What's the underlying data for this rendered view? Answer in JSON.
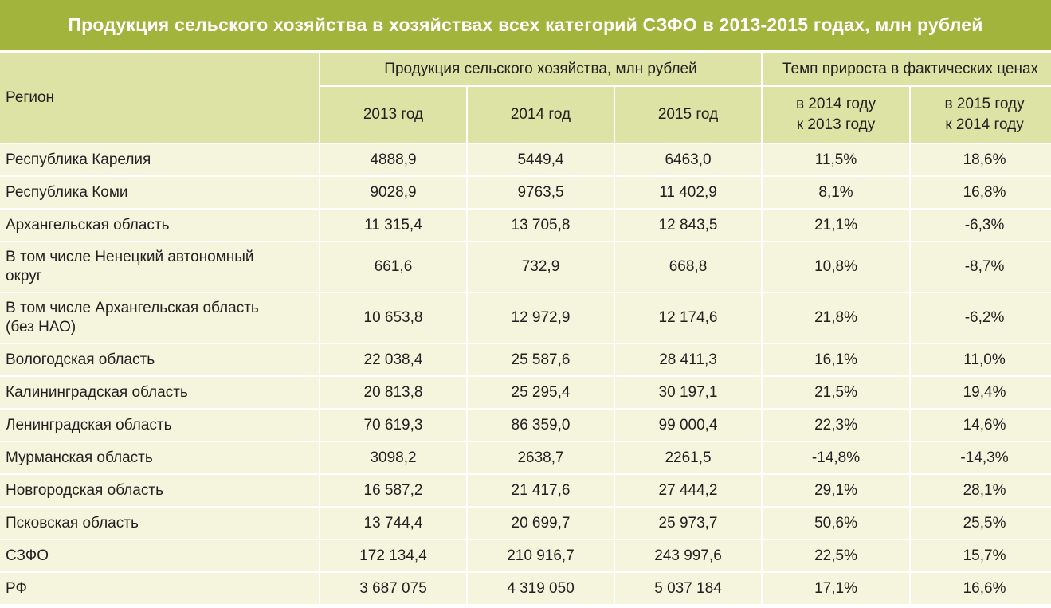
{
  "title": "Продукция сельского хозяйства в хозяйствах всех категорий СЗФО в 2013-2015 годах, млн рублей",
  "header": {
    "region": "Регион",
    "production_group": "Продукция сельского хозяйства, млн рублей",
    "growth_group": "Темп прироста в фактических ценах",
    "y2013": "2013 год",
    "y2014": "2014 год",
    "y2015": "2015 год",
    "g2014_l1": "в 2014 году",
    "g2014_l2": "к 2013 году",
    "g2015_l1": "в 2015 году",
    "g2015_l2": "к 2014 году"
  },
  "rows": [
    {
      "region": [
        "Республика Карелия"
      ],
      "y2013": "4888,9",
      "y2014": "5449,4",
      "y2015": "6463,0",
      "g1": "11,5%",
      "g2": "18,6%"
    },
    {
      "region": [
        "Республика Коми"
      ],
      "y2013": "9028,9",
      "y2014": "9763,5",
      "y2015": "11 402,9",
      "g1": "8,1%",
      "g2": "16,8%"
    },
    {
      "region": [
        "Архангельская область"
      ],
      "y2013": "11 315,4",
      "y2014": "13 705,8",
      "y2015": "12 843,5",
      "g1": "21,1%",
      "g2": "-6,3%"
    },
    {
      "region": [
        "В том числе Ненецкий автономный",
        "округ"
      ],
      "y2013": "661,6",
      "y2014": "732,9",
      "y2015": "668,8",
      "g1": "10,8%",
      "g2": "-8,7%"
    },
    {
      "region": [
        "В том числе Архангельская область",
        "(без НАО)"
      ],
      "y2013": "10 653,8",
      "y2014": "12 972,9",
      "y2015": "12 174,6",
      "g1": "21,8%",
      "g2": "-6,2%"
    },
    {
      "region": [
        "Вологодская область"
      ],
      "y2013": "22 038,4",
      "y2014": "25 587,6",
      "y2015": "28 411,3",
      "g1": "16,1%",
      "g2": "11,0%"
    },
    {
      "region": [
        "Калининградская область"
      ],
      "y2013": "20 813,8",
      "y2014": "25 295,4",
      "y2015": "30 197,1",
      "g1": "21,5%",
      "g2": "19,4%"
    },
    {
      "region": [
        "Ленинградская область"
      ],
      "y2013": "70 619,3",
      "y2014": "86 359,0",
      "y2015": "99 000,4",
      "g1": "22,3%",
      "g2": "14,6%"
    },
    {
      "region": [
        "Мурманская область"
      ],
      "y2013": "3098,2",
      "y2014": "2638,7",
      "y2015": "2261,5",
      "g1": "-14,8%",
      "g2": "-14,3%"
    },
    {
      "region": [
        "Новгородская область"
      ],
      "y2013": "16 587,2",
      "y2014": "21 417,6",
      "y2015": "27 444,2",
      "g1": "29,1%",
      "g2": "28,1%"
    },
    {
      "region": [
        "Псковская область"
      ],
      "y2013": "13 744,4",
      "y2014": "20 699,7",
      "y2015": "25 973,7",
      "g1": "50,6%",
      "g2": "25,5%"
    },
    {
      "region": [
        "СЗФО"
      ],
      "y2013": "172 134,4",
      "y2014": "210 916,7",
      "y2015": "243 997,6",
      "g1": "22,5%",
      "g2": "15,7%"
    },
    {
      "region": [
        "РФ"
      ],
      "y2013": "3 687 075",
      "y2014": "4 319 050",
      "y2015": "5 037 184",
      "g1": "17,1%",
      "g2": "16,6%"
    }
  ],
  "colors": {
    "title_bg": "#a2b43c",
    "header_bg": "#dde3a4",
    "row_bg": "#f4f5dc"
  }
}
